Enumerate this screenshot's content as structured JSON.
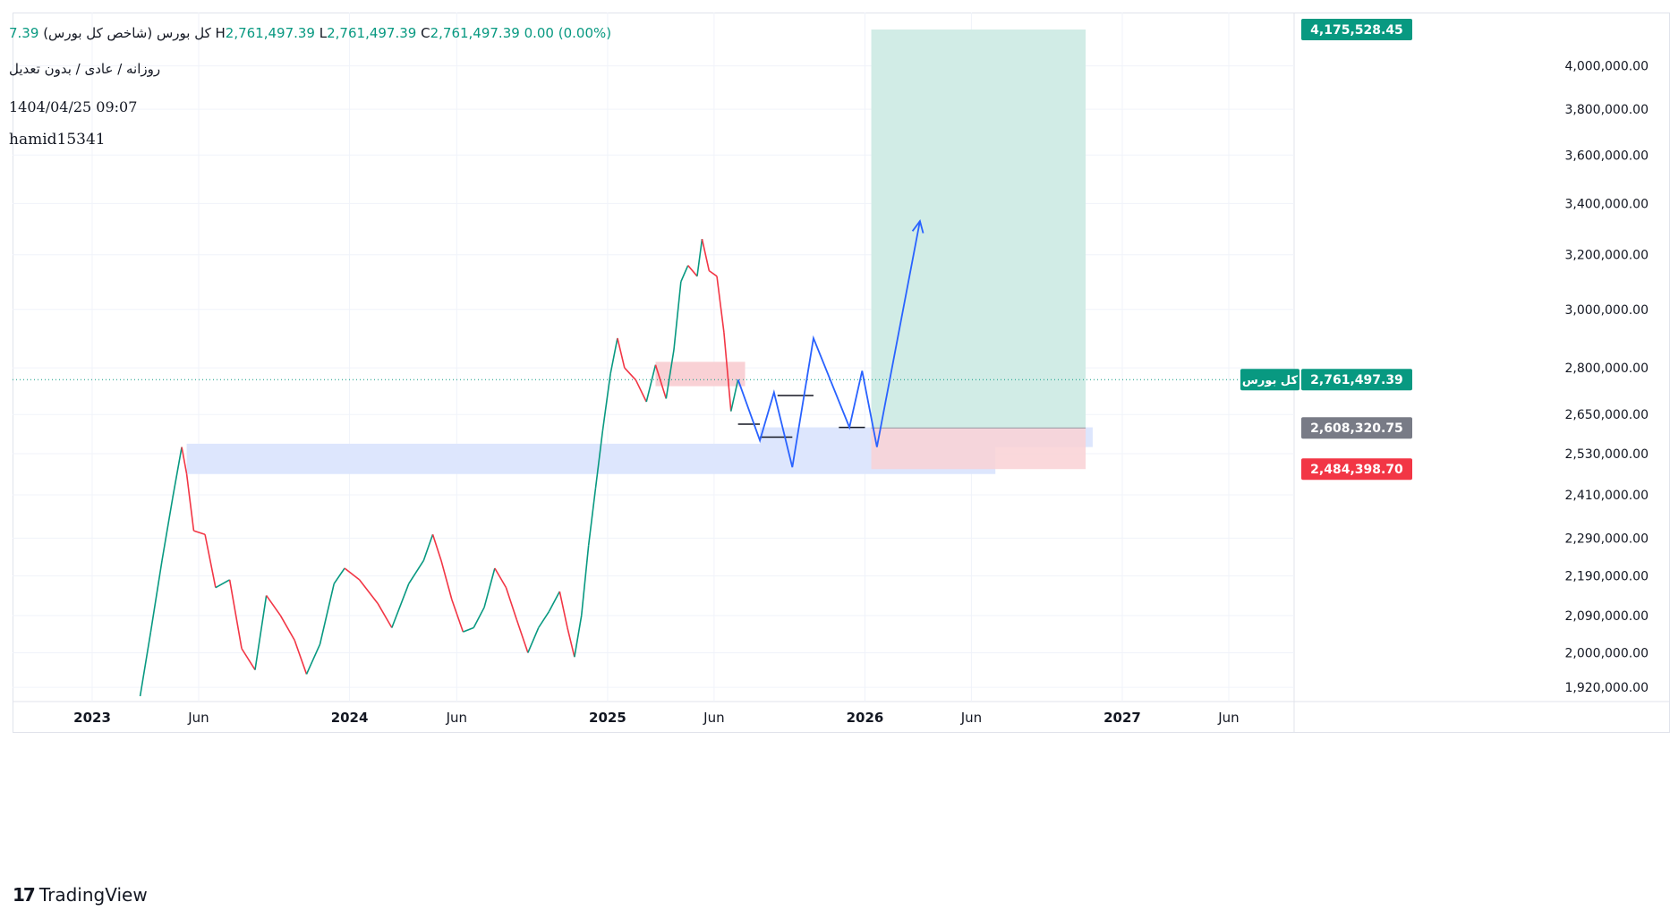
{
  "legend": {
    "title": "کل بورس (شاخص کل بورس)",
    "o_fragment": "7.39",
    "h_label": "H",
    "h_value": "2,761,497.39",
    "l_label": "L",
    "l_value": "2,761,497.39",
    "c_label": "C",
    "c_value": "2,761,497.39",
    "change": "0.00 (0.00%)",
    "settings": "روزانه / عادی / بدون تعدیل",
    "datetime": "1404/04/25 09:07",
    "author": "hamid15341"
  },
  "brand": {
    "name": "TradingView",
    "logo_text": "17"
  },
  "price_badges": {
    "target": "4,175,528.45",
    "current_label": "کل بورس",
    "current": "2,761,497.39",
    "entry": "2,608,320.75",
    "stop": "2,484,398.70"
  },
  "colors": {
    "up": "#089981",
    "down": "#f23645",
    "projection": "#2962ff",
    "target_zone": "#d1ece6",
    "stop_zone": "#f9d1d5",
    "demand_zone": "#dde6fd",
    "badge_green": "#089981",
    "badge_gray": "#787b86",
    "badge_red": "#f23645"
  },
  "chart_data": {
    "type": "line",
    "title": "کل بورس (شاخص کل بورس)",
    "interval": "Daily",
    "y_axis": {
      "scale": "log",
      "ticks": [
        "4,000,000.00",
        "3,800,000.00",
        "3,600,000.00",
        "3,400,000.00",
        "3,200,000.00",
        "3,000,000.00",
        "2,800,000.00",
        "2,650,000.00",
        "2,530,000.00",
        "2,410,000.00",
        "2,290,000.00",
        "2,190,000.00",
        "2,090,000.00",
        "2,000,000.00",
        "1,920,000.00"
      ],
      "tick_values": [
        4000000,
        3800000,
        3600000,
        3400000,
        3200000,
        3000000,
        2800000,
        2650000,
        2530000,
        2410000,
        2290000,
        2190000,
        2090000,
        2000000,
        1920000
      ],
      "range": [
        1890000,
        4260000
      ]
    },
    "x_axis": {
      "ticks": [
        "2023",
        "Jun",
        "2024",
        "Jun",
        "2025",
        "Jun",
        "2026",
        "Jun",
        "2027",
        "Jun"
      ],
      "tick_dates": [
        "2023-01-01",
        "2023-06-01",
        "2024-01-01",
        "2024-06-01",
        "2025-01-01",
        "2025-06-01",
        "2026-01-01",
        "2026-06-01",
        "2027-01-01",
        "2027-06-01"
      ],
      "range": [
        "2022-09-10",
        "2027-08-20"
      ]
    },
    "series": [
      {
        "values": [
          {
            "x": "2023-03-10",
            "y": 1900000
          },
          {
            "x": "2023-03-25",
            "y": 2050000
          },
          {
            "x": "2023-04-10",
            "y": 2230000
          },
          {
            "x": "2023-04-25",
            "y": 2400000
          },
          {
            "x": "2023-05-08",
            "y": 2550000
          },
          {
            "x": "2023-05-15",
            "y": 2470000
          },
          {
            "x": "2023-05-25",
            "y": 2310000
          },
          {
            "x": "2023-06-10",
            "y": 2300000
          },
          {
            "x": "2023-06-25",
            "y": 2160000
          },
          {
            "x": "2023-07-15",
            "y": 2180000
          },
          {
            "x": "2023-08-01",
            "y": 2010000
          },
          {
            "x": "2023-08-20",
            "y": 1960000
          },
          {
            "x": "2023-09-05",
            "y": 2140000
          },
          {
            "x": "2023-09-25",
            "y": 2090000
          },
          {
            "x": "2023-10-15",
            "y": 2030000
          },
          {
            "x": "2023-11-01",
            "y": 1950000
          },
          {
            "x": "2023-11-20",
            "y": 2020000
          },
          {
            "x": "2023-12-10",
            "y": 2170000
          },
          {
            "x": "2023-12-25",
            "y": 2210000
          },
          {
            "x": "2024-01-15",
            "y": 2180000
          },
          {
            "x": "2024-02-10",
            "y": 2120000
          },
          {
            "x": "2024-03-01",
            "y": 2060000
          },
          {
            "x": "2024-03-25",
            "y": 2170000
          },
          {
            "x": "2024-04-15",
            "y": 2230000
          },
          {
            "x": "2024-04-28",
            "y": 2300000
          },
          {
            "x": "2024-05-10",
            "y": 2230000
          },
          {
            "x": "2024-05-25",
            "y": 2130000
          },
          {
            "x": "2024-06-10",
            "y": 2050000
          },
          {
            "x": "2024-06-25",
            "y": 2060000
          },
          {
            "x": "2024-07-10",
            "y": 2110000
          },
          {
            "x": "2024-07-25",
            "y": 2210000
          },
          {
            "x": "2024-08-10",
            "y": 2160000
          },
          {
            "x": "2024-08-25",
            "y": 2080000
          },
          {
            "x": "2024-09-10",
            "y": 2000000
          },
          {
            "x": "2024-09-25",
            "y": 2060000
          },
          {
            "x": "2024-10-10",
            "y": 2100000
          },
          {
            "x": "2024-10-25",
            "y": 2150000
          },
          {
            "x": "2024-11-05",
            "y": 2060000
          },
          {
            "x": "2024-11-15",
            "y": 1990000
          },
          {
            "x": "2024-11-25",
            "y": 2090000
          },
          {
            "x": "2024-12-05",
            "y": 2270000
          },
          {
            "x": "2024-12-15",
            "y": 2430000
          },
          {
            "x": "2024-12-25",
            "y": 2600000
          },
          {
            "x": "2025-01-05",
            "y": 2780000
          },
          {
            "x": "2025-01-15",
            "y": 2900000
          },
          {
            "x": "2025-01-25",
            "y": 2800000
          },
          {
            "x": "2025-02-10",
            "y": 2760000
          },
          {
            "x": "2025-02-25",
            "y": 2690000
          },
          {
            "x": "2025-03-10",
            "y": 2810000
          },
          {
            "x": "2025-03-25",
            "y": 2700000
          },
          {
            "x": "2025-04-05",
            "y": 2860000
          },
          {
            "x": "2025-04-15",
            "y": 3100000
          },
          {
            "x": "2025-04-25",
            "y": 3160000
          },
          {
            "x": "2025-05-08",
            "y": 3120000
          },
          {
            "x": "2025-05-15",
            "y": 3260000
          },
          {
            "x": "2025-05-25",
            "y": 3140000
          },
          {
            "x": "2025-06-05",
            "y": 3120000
          },
          {
            "x": "2025-06-15",
            "y": 2920000
          },
          {
            "x": "2025-06-25",
            "y": 2660000
          },
          {
            "x": "2025-07-05",
            "y": 2761497.39
          }
        ]
      }
    ],
    "projection_path": [
      {
        "x": "2025-07-05",
        "y": 2761497.39
      },
      {
        "x": "2025-08-05",
        "y": 2570000
      },
      {
        "x": "2025-08-25",
        "y": 2720000
      },
      {
        "x": "2025-09-20",
        "y": 2490000
      },
      {
        "x": "2025-10-20",
        "y": 2900000
      },
      {
        "x": "2025-12-10",
        "y": 2610000
      },
      {
        "x": "2025-12-28",
        "y": 2790000
      },
      {
        "x": "2026-01-18",
        "y": 2550000
      },
      {
        "x": "2026-03-20",
        "y": 3330000
      }
    ],
    "horizontal_segments": [
      {
        "x1": "2025-07-05",
        "x2": "2025-08-05",
        "y": 2620000
      },
      {
        "x1": "2025-08-05",
        "x2": "2025-09-20",
        "y": 2580000
      },
      {
        "x1": "2025-08-30",
        "x2": "2025-10-20",
        "y": 2710000
      },
      {
        "x1": "2025-11-25",
        "x2": "2026-01-01",
        "y": 2610000
      }
    ],
    "zones": {
      "supply": {
        "x1": "2025-03-10",
        "x2": "2025-07-15",
        "y1": 2740000,
        "y2": 2820000
      },
      "demand": {
        "x1": "2023-05-15",
        "x2": "2026-07-05",
        "y1": 2470000,
        "y2": 2560000
      },
      "demand_small": {
        "x1": "2025-08-05",
        "x2": "2026-11-20",
        "y1": 2550000,
        "y2": 2610000
      },
      "position_entry": {
        "x1": "2026-01-10",
        "x2": "2026-11-10",
        "y": 2608320.75
      },
      "position_target": 4175528.45,
      "position_stop": 2484398.7
    }
  }
}
